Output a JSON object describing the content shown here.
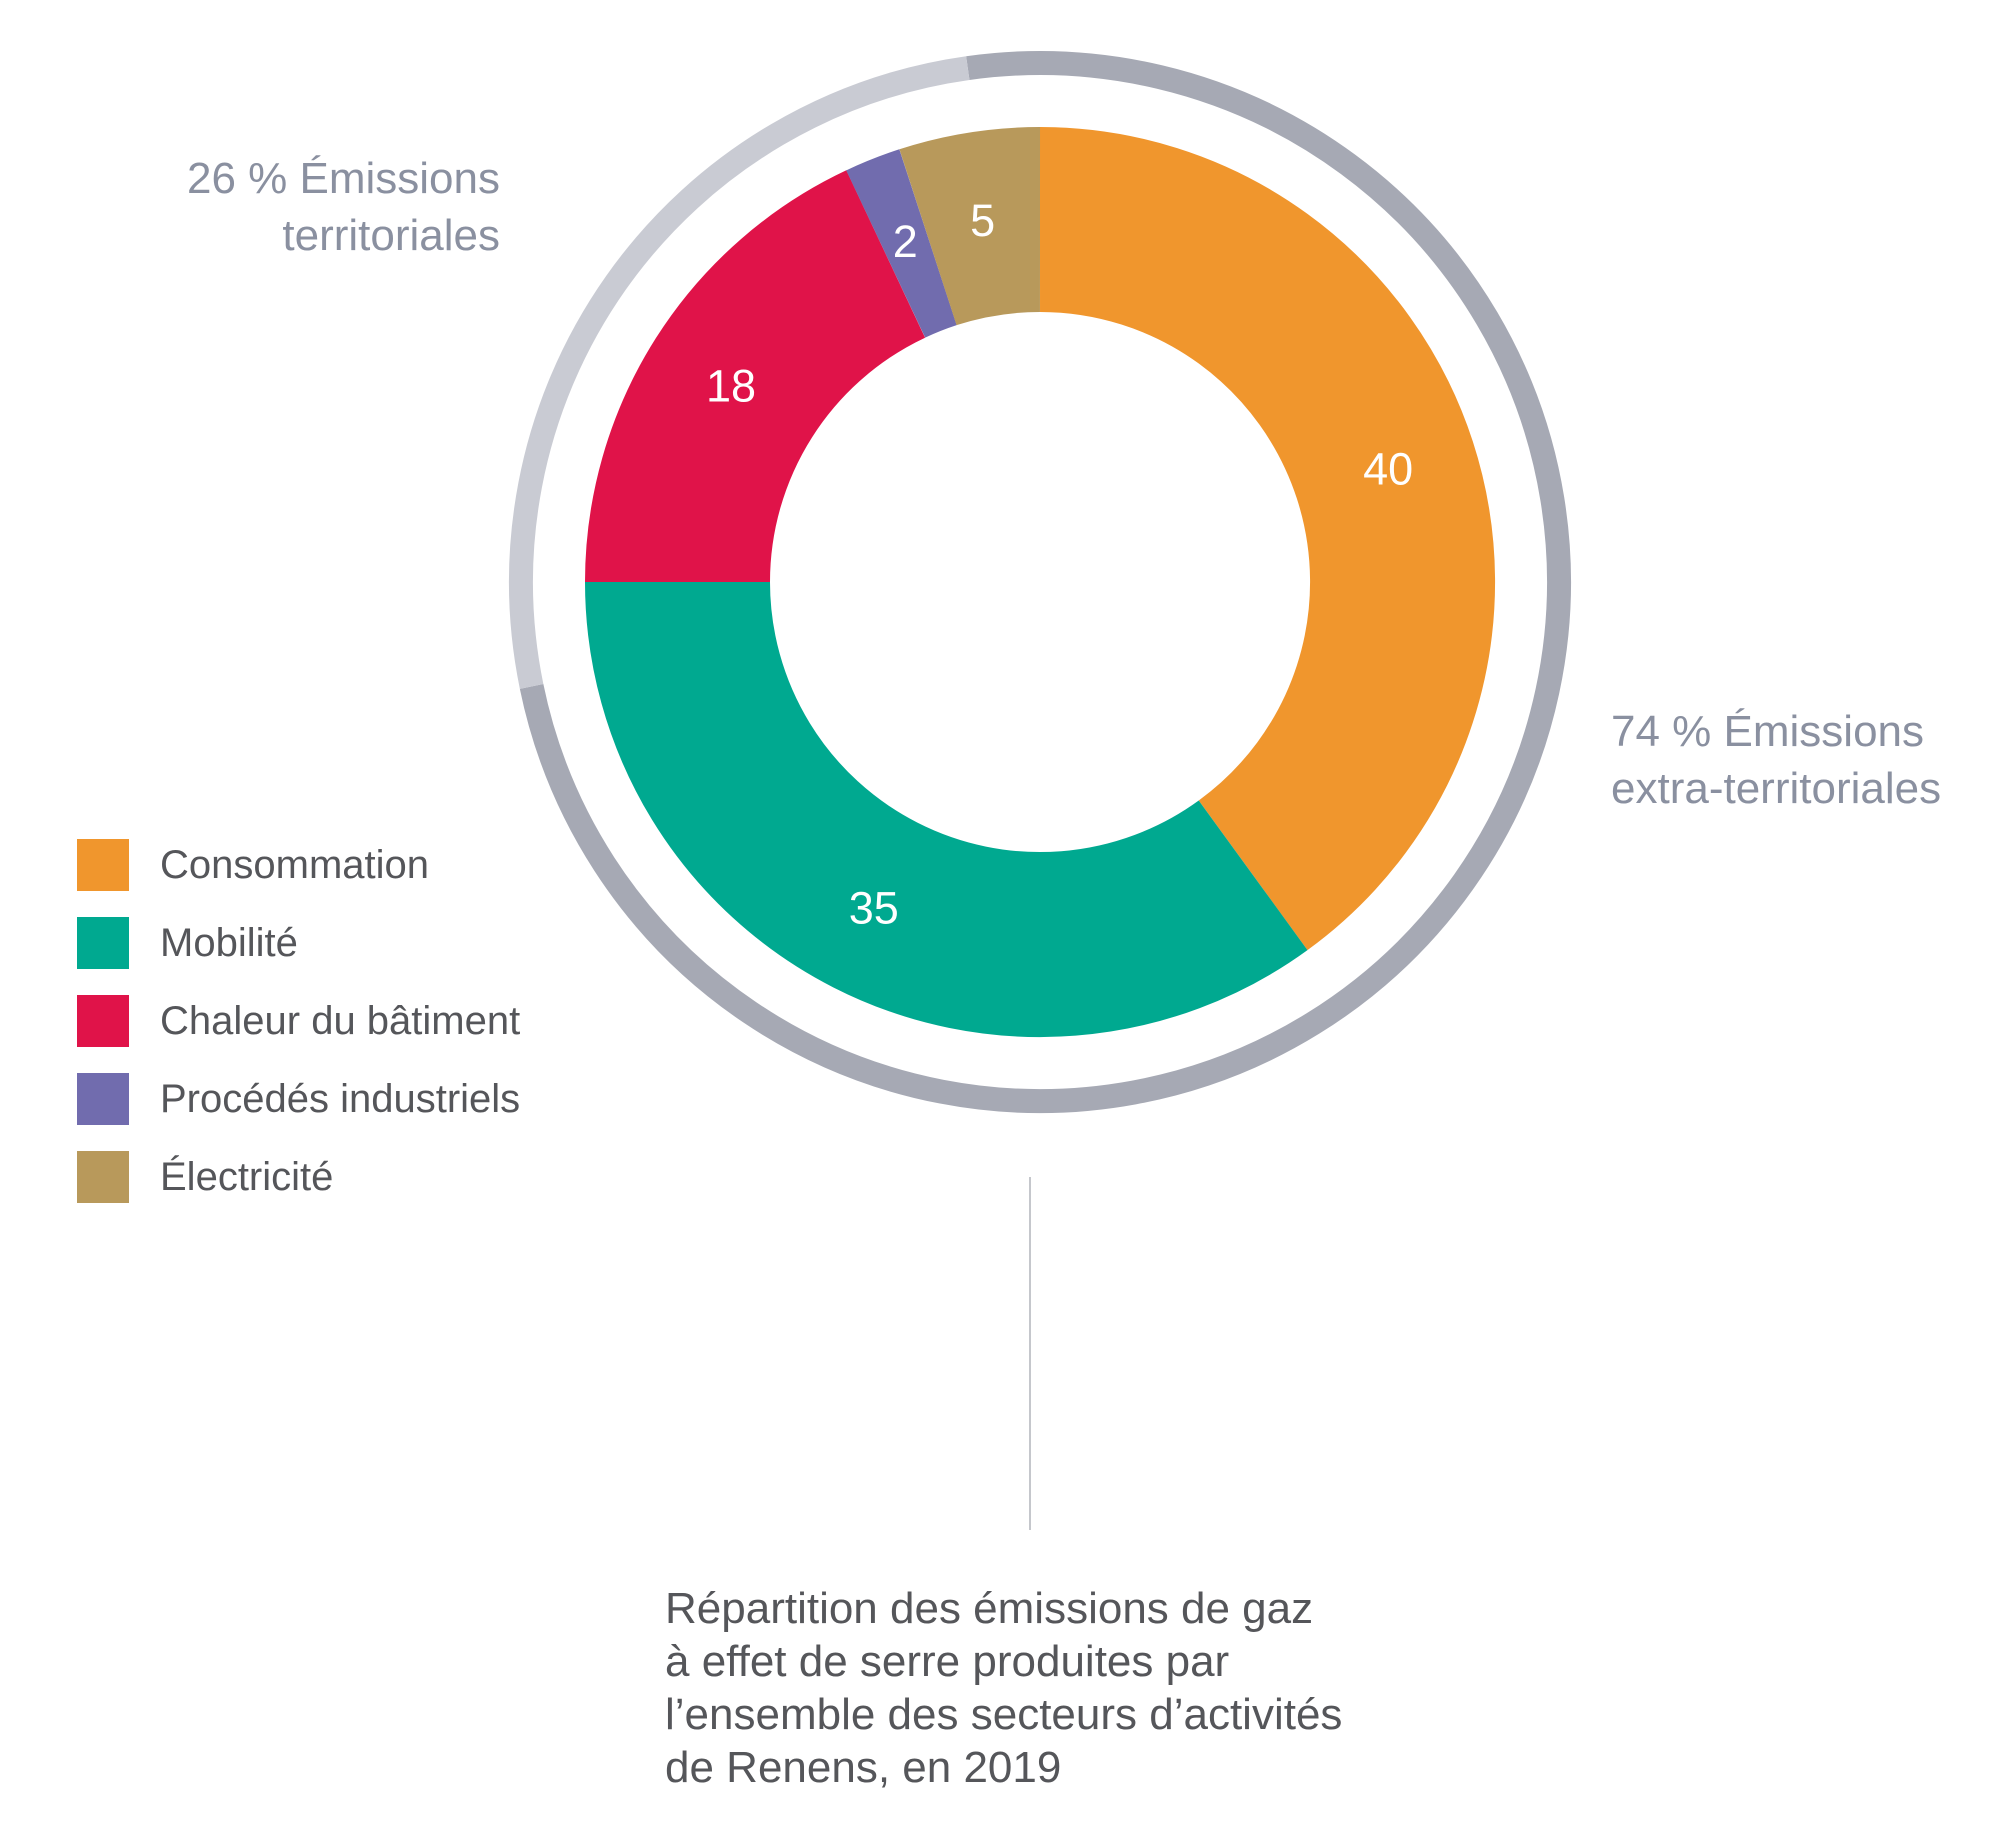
{
  "chart_data": {
    "type": "pie",
    "subtype": "donut",
    "title": "Répartition des émissions de gaz à effet de serre produites par l’ensemble des secteurs d’activités de Renens, en 2019",
    "unit": "%",
    "segments": [
      {
        "label": "Consommation",
        "value": 40,
        "color": "#F0962D"
      },
      {
        "label": "Mobilité",
        "value": 35,
        "color": "#00A990"
      },
      {
        "label": "Chaleur du bâtiment",
        "value": 18,
        "color": "#E01349"
      },
      {
        "label": "Procédés industriels",
        "value": 2,
        "color": "#716CAE"
      },
      {
        "label": "Électricité",
        "value": 5,
        "color": "#B8995B"
      }
    ],
    "outer_ring": [
      {
        "label": "74 % Émissions extra-territoriales",
        "value": 74,
        "color": "#A6A9B4"
      },
      {
        "label": "26 % Émissions territoriales",
        "value": 26,
        "color": "#C9CBD3"
      }
    ],
    "layout": {
      "start_angle_deg": 0,
      "ring_start_angle_deg": -8,
      "clockwise": true,
      "legend_position": "left",
      "value_label_color": "#FFFFFF"
    }
  },
  "labels": {
    "territoriales": {
      "line1": "26 % Émissions",
      "line2": "territoriales"
    },
    "extra_territoriales": {
      "line1": "74 % Émissions",
      "line2": "extra-territoriales"
    }
  },
  "legend": {
    "items": [
      {
        "label": "Consommation",
        "color": "#F0962D"
      },
      {
        "label": "Mobilité",
        "color": "#00A990"
      },
      {
        "label": "Chaleur du bâtiment",
        "color": "#E01349"
      },
      {
        "label": "Procédés industriels",
        "color": "#716CAE"
      },
      {
        "label": "Électricité",
        "color": "#B8995B"
      }
    ]
  },
  "caption": {
    "lines": [
      "Répartition des émissions de gaz",
      "à effet de serre produites par",
      "l’ensemble des secteurs d’activités",
      "de Renens, en 2019"
    ]
  }
}
